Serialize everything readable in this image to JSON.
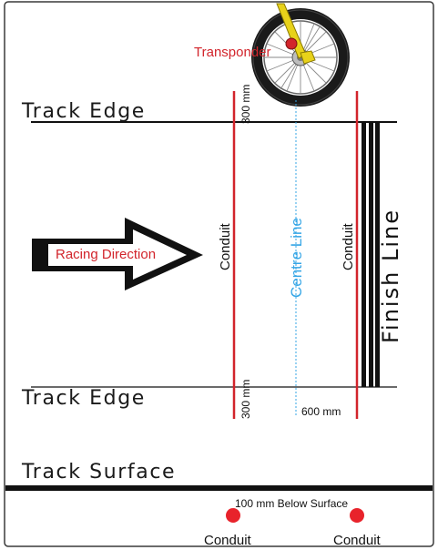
{
  "labels": {
    "transponder": "Transponder",
    "track_edge_top": "Track Edge",
    "track_edge_bottom": "Track Edge",
    "track_surface": "Track Surface",
    "racing_direction": "Racing Direction",
    "conduit_left": "Conduit",
    "conduit_right": "Conduit",
    "centre_line": "Centre Line",
    "finish_line": "Finish Line",
    "dim_300_top": "300 mm",
    "dim_300_bottom": "300 mm",
    "dim_600": "600 mm",
    "below_surface": "100 mm Below Surface",
    "conduit_section_left": "Conduit",
    "conduit_section_right": "Conduit"
  },
  "colors": {
    "conduit_red": "#d2242b",
    "centre_line_blue": "#36a6e6",
    "line_black": "#111111",
    "fork_yellow": "#e8d21a"
  }
}
